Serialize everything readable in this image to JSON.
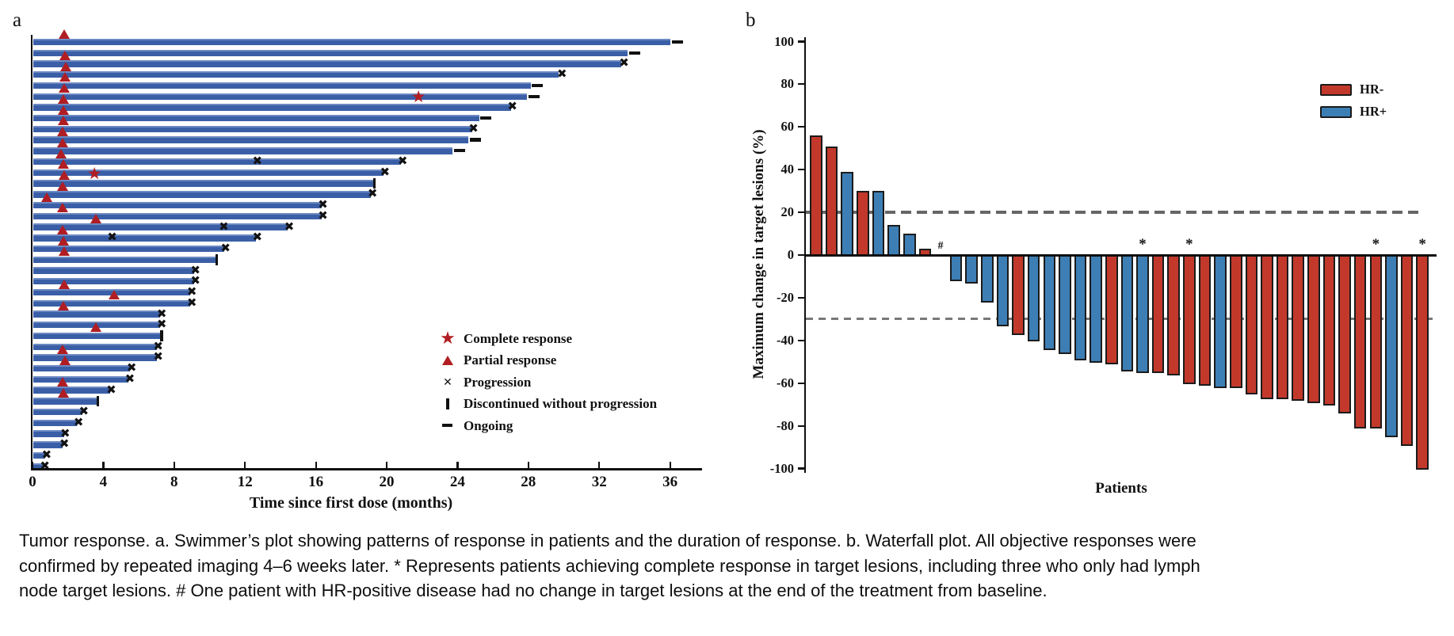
{
  "caption": "Tumor response. a. Swimmer’s plot showing patterns of response in patients and the duration of response. b. Waterfall plot. All objective responses were confirmed by repeated imaging 4–6 weeks later. * Represents patients achieving complete response in target lesions, including three who only had lymph node target lesions. # One patient with HR-positive disease had no change in target lesions at the end of the treatment from baseline.",
  "colors": {
    "swimmer_bar": "#3a5fa7",
    "swimmer_bar_light": "#6d89c2",
    "response_red": "#b01e23",
    "hr_neg": "#c2392b",
    "hr_pos": "#3d7eb4",
    "bar_outline": "#1b1b1b",
    "axis_black": "#0f0f0f",
    "dash_gray_20": "#666666",
    "dash_gray_30": "#787878"
  },
  "chart_data": [
    {
      "type": "swimmer",
      "label": "a",
      "x_axis": {
        "label": "Time since first dose (months)",
        "ticks": [
          0,
          4,
          8,
          12,
          16,
          20,
          24,
          28,
          32,
          36
        ],
        "max": 37.8
      },
      "legend": [
        {
          "marker": "star",
          "label": "Complete response"
        },
        {
          "marker": "triangle",
          "label": "Partial response"
        },
        {
          "marker": "x",
          "label": "Progression"
        },
        {
          "marker": "bar",
          "label": "Discontinued without progression"
        },
        {
          "marker": "dash",
          "label": "Ongoing"
        }
      ],
      "patients": [
        {
          "d": 36.0,
          "ongoing": true,
          "mk": [
            {
              "t": "pr",
              "m": 1.8
            }
          ]
        },
        {
          "d": 33.6,
          "ongoing": true,
          "mk": []
        },
        {
          "d": 33.2,
          "ongoing": false,
          "mk": [
            {
              "t": "pr",
              "m": 1.85
            },
            {
              "t": "x",
              "m": 33.4
            }
          ]
        },
        {
          "d": 29.7,
          "ongoing": false,
          "mk": [
            {
              "t": "pr",
              "m": 1.9
            },
            {
              "t": "x",
              "m": 29.9
            }
          ]
        },
        {
          "d": 28.1,
          "ongoing": true,
          "mk": [
            {
              "t": "pr",
              "m": 1.85
            }
          ]
        },
        {
          "d": 27.9,
          "ongoing": true,
          "mk": [
            {
              "t": "pr",
              "m": 1.8
            }
          ]
        },
        {
          "d": 27.0,
          "ongoing": false,
          "mk": [
            {
              "t": "pr",
              "m": 1.75
            },
            {
              "t": "cr",
              "m": 21.8
            },
            {
              "t": "x",
              "m": 27.1
            }
          ]
        },
        {
          "d": 25.2,
          "ongoing": true,
          "mk": [
            {
              "t": "pr",
              "m": 1.75
            }
          ]
        },
        {
          "d": 24.8,
          "ongoing": false,
          "mk": [
            {
              "t": "pr",
              "m": 1.75
            },
            {
              "t": "x",
              "m": 24.9
            }
          ]
        },
        {
          "d": 24.6,
          "ongoing": true,
          "mk": [
            {
              "t": "pr",
              "m": 1.7
            }
          ]
        },
        {
          "d": 23.7,
          "ongoing": true,
          "mk": [
            {
              "t": "pr",
              "m": 1.7
            }
          ]
        },
        {
          "d": 20.8,
          "ongoing": false,
          "mk": [
            {
              "t": "pr",
              "m": 1.6
            },
            {
              "t": "x",
              "m": 12.7
            },
            {
              "t": "x",
              "m": 20.9
            }
          ]
        },
        {
          "d": 19.8,
          "ongoing": false,
          "mk": [
            {
              "t": "pr",
              "m": 1.75
            },
            {
              "t": "x",
              "m": 19.9
            }
          ]
        },
        {
          "d": 19.2,
          "ongoing": false,
          "mk": [
            {
              "t": "pr",
              "m": 1.8
            },
            {
              "t": "cr",
              "m": 3.5
            },
            {
              "t": "disc",
              "m": 19.3
            }
          ]
        },
        {
          "d": 19.1,
          "ongoing": false,
          "mk": [
            {
              "t": "pr",
              "m": 1.7
            },
            {
              "t": "x",
              "m": 19.2
            }
          ]
        },
        {
          "d": 16.3,
          "ongoing": false,
          "mk": [
            {
              "t": "pr",
              "m": 0.8
            },
            {
              "t": "x",
              "m": 16.4
            }
          ]
        },
        {
          "d": 16.3,
          "ongoing": false,
          "mk": [
            {
              "t": "pr",
              "m": 1.7
            },
            {
              "t": "x",
              "m": 16.4
            }
          ]
        },
        {
          "d": 14.4,
          "ongoing": false,
          "mk": [
            {
              "t": "pr",
              "m": 3.6
            },
            {
              "t": "x",
              "m": 10.8
            },
            {
              "t": "x",
              "m": 14.5
            }
          ]
        },
        {
          "d": 12.6,
          "ongoing": false,
          "mk": [
            {
              "t": "pr",
              "m": 1.7
            },
            {
              "t": "x",
              "m": 4.5
            },
            {
              "t": "x",
              "m": 12.7
            }
          ]
        },
        {
          "d": 10.8,
          "ongoing": false,
          "mk": [
            {
              "t": "pr",
              "m": 1.75
            },
            {
              "t": "x",
              "m": 10.9
            }
          ]
        },
        {
          "d": 10.3,
          "ongoing": false,
          "mk": [
            {
              "t": "pr",
              "m": 1.8
            },
            {
              "t": "disc",
              "m": 10.4
            }
          ]
        },
        {
          "d": 9.1,
          "ongoing": false,
          "mk": [
            {
              "t": "x",
              "m": 9.2
            }
          ]
        },
        {
          "d": 9.1,
          "ongoing": false,
          "mk": [
            {
              "t": "x",
              "m": 9.2
            }
          ]
        },
        {
          "d": 8.9,
          "ongoing": false,
          "mk": [
            {
              "t": "pr",
              "m": 1.8
            },
            {
              "t": "x",
              "m": 9.0
            }
          ]
        },
        {
          "d": 8.9,
          "ongoing": false,
          "mk": [
            {
              "t": "pr",
              "m": 4.6
            },
            {
              "t": "x",
              "m": 9.0
            }
          ]
        },
        {
          "d": 7.2,
          "ongoing": false,
          "mk": [
            {
              "t": "pr",
              "m": 1.75
            },
            {
              "t": "x",
              "m": 7.3
            }
          ]
        },
        {
          "d": 7.2,
          "ongoing": false,
          "mk": [
            {
              "t": "x",
              "m": 7.3
            }
          ]
        },
        {
          "d": 7.2,
          "ongoing": false,
          "mk": [
            {
              "t": "pr",
              "m": 3.6
            },
            {
              "t": "disc",
              "m": 7.3
            }
          ]
        },
        {
          "d": 7.0,
          "ongoing": false,
          "mk": [
            {
              "t": "x",
              "m": 7.1
            }
          ]
        },
        {
          "d": 7.0,
          "ongoing": false,
          "mk": [
            {
              "t": "pr",
              "m": 1.7
            },
            {
              "t": "x",
              "m": 7.1
            }
          ]
        },
        {
          "d": 5.5,
          "ongoing": false,
          "mk": [
            {
              "t": "pr",
              "m": 1.85
            },
            {
              "t": "x",
              "m": 5.6
            }
          ]
        },
        {
          "d": 5.4,
          "ongoing": false,
          "mk": [
            {
              "t": "x",
              "m": 5.5
            }
          ]
        },
        {
          "d": 4.35,
          "ongoing": false,
          "mk": [
            {
              "t": "pr",
              "m": 1.7
            },
            {
              "t": "x",
              "m": 4.45
            }
          ]
        },
        {
          "d": 3.6,
          "ongoing": false,
          "mk": [
            {
              "t": "pr",
              "m": 1.75
            },
            {
              "t": "disc",
              "m": 3.7
            }
          ]
        },
        {
          "d": 2.8,
          "ongoing": false,
          "mk": [
            {
              "t": "x",
              "m": 2.9
            }
          ]
        },
        {
          "d": 2.5,
          "ongoing": false,
          "mk": [
            {
              "t": "x",
              "m": 2.6
            }
          ]
        },
        {
          "d": 1.75,
          "ongoing": false,
          "mk": [
            {
              "t": "x",
              "m": 1.85
            }
          ]
        },
        {
          "d": 1.7,
          "ongoing": false,
          "mk": [
            {
              "t": "x",
              "m": 1.8
            }
          ]
        },
        {
          "d": 0.7,
          "ongoing": false,
          "mk": [
            {
              "t": "x",
              "m": 0.8
            }
          ]
        },
        {
          "d": 0.6,
          "ongoing": false,
          "mk": [
            {
              "t": "x",
              "m": 0.7
            }
          ]
        }
      ]
    },
    {
      "type": "waterfall",
      "label": "b",
      "y_axis": {
        "label": "Maximum change in target lesions (%)",
        "ticks": [
          100,
          80,
          60,
          40,
          20,
          0,
          -20,
          -40,
          -60,
          -80,
          -100
        ],
        "ylim": [
          -100,
          100
        ]
      },
      "x_label": "Patients",
      "ref_lines": [
        {
          "value": 20
        },
        {
          "value": -30
        }
      ],
      "legend": [
        {
          "label": "HR-",
          "group": "HR-"
        },
        {
          "label": "HR+",
          "group": "HR+"
        }
      ],
      "bars": [
        {
          "v": 56,
          "g": "HR-"
        },
        {
          "v": 51,
          "g": "HR-"
        },
        {
          "v": 39,
          "g": "HR+"
        },
        {
          "v": 30,
          "g": "HR-"
        },
        {
          "v": 30,
          "g": "HR+"
        },
        {
          "v": 14,
          "g": "HR+"
        },
        {
          "v": 10,
          "g": "HR+"
        },
        {
          "v": 3,
          "g": "HR-"
        },
        {
          "v": 0,
          "g": "HR+",
          "hash": true
        },
        {
          "v": -12,
          "g": "HR+"
        },
        {
          "v": -13,
          "g": "HR+"
        },
        {
          "v": -22,
          "g": "HR+"
        },
        {
          "v": -33,
          "g": "HR+"
        },
        {
          "v": -37,
          "g": "HR-"
        },
        {
          "v": -40,
          "g": "HR+"
        },
        {
          "v": -44,
          "g": "HR+"
        },
        {
          "v": -46,
          "g": "HR+"
        },
        {
          "v": -49,
          "g": "HR+"
        },
        {
          "v": -50,
          "g": "HR+"
        },
        {
          "v": -51,
          "g": "HR-"
        },
        {
          "v": -54,
          "g": "HR+"
        },
        {
          "v": -55,
          "g": "HR+",
          "star": true
        },
        {
          "v": -55,
          "g": "HR-"
        },
        {
          "v": -56,
          "g": "HR-"
        },
        {
          "v": -60,
          "g": "HR-",
          "star": true
        },
        {
          "v": -61,
          "g": "HR-"
        },
        {
          "v": -62,
          "g": "HR+"
        },
        {
          "v": -62,
          "g": "HR-"
        },
        {
          "v": -65,
          "g": "HR-"
        },
        {
          "v": -67,
          "g": "HR-"
        },
        {
          "v": -67,
          "g": "HR-"
        },
        {
          "v": -68,
          "g": "HR-"
        },
        {
          "v": -69,
          "g": "HR-"
        },
        {
          "v": -70,
          "g": "HR-"
        },
        {
          "v": -74,
          "g": "HR-"
        },
        {
          "v": -81,
          "g": "HR-"
        },
        {
          "v": -81,
          "g": "HR-",
          "star": true
        },
        {
          "v": -85,
          "g": "HR+"
        },
        {
          "v": -89,
          "g": "HR-"
        },
        {
          "v": -100,
          "g": "HR-",
          "star": true
        }
      ],
      "annotations": {
        "asterisk": "*",
        "hash": "#"
      }
    }
  ]
}
